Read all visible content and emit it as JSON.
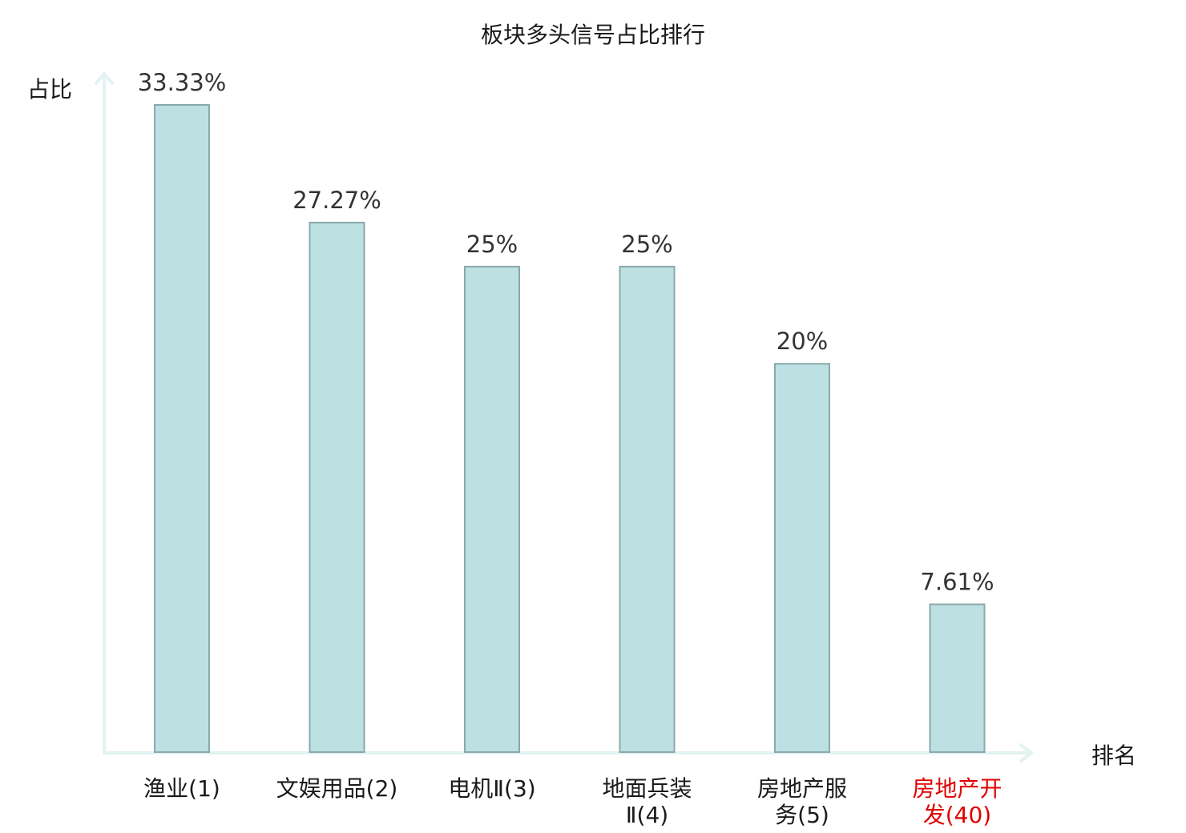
{
  "chart_data": {
    "type": "bar",
    "title": "板块多头信号占比排行",
    "xlabel": "排名",
    "ylabel": "占比",
    "categories": [
      {
        "lines": [
          "渔业(1)"
        ],
        "highlight": false
      },
      {
        "lines": [
          "文娱用品(2)"
        ],
        "highlight": false
      },
      {
        "lines": [
          "电机Ⅱ(3)"
        ],
        "highlight": false
      },
      {
        "lines": [
          "地面兵装",
          "Ⅱ(4)"
        ],
        "highlight": false
      },
      {
        "lines": [
          "房地产服",
          "务(5)"
        ],
        "highlight": false
      },
      {
        "lines": [
          "房地产开",
          "发(40)"
        ],
        "highlight": true
      }
    ],
    "values": [
      33.33,
      27.27,
      25,
      25,
      20,
      7.61
    ],
    "value_labels": [
      "33.33%",
      "27.27%",
      "25%",
      "25%",
      "20%",
      "7.61%"
    ],
    "ylim": [
      0,
      33.33
    ],
    "grid": false,
    "legend": "none",
    "colors": {
      "bar_fill": "#bde0e3",
      "bar_stroke": "#8aa9ab",
      "axis": "#e2f3f1",
      "highlight_label": "#e00000"
    }
  }
}
